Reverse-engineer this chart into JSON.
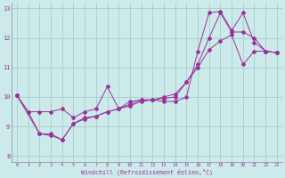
{
  "xlabel": "Windchill (Refroidissement éolien,°C)",
  "bg_color": "#cceaea",
  "grid_color": "#aacccc",
  "line_color": "#993399",
  "xlim": [
    -0.5,
    23.5
  ],
  "ylim": [
    7.8,
    13.2
  ],
  "yticks": [
    8,
    9,
    10,
    11,
    12,
    13
  ],
  "xticks": [
    0,
    1,
    2,
    3,
    4,
    5,
    6,
    7,
    8,
    9,
    10,
    11,
    12,
    13,
    14,
    15,
    16,
    17,
    18,
    19,
    20,
    21,
    22,
    23
  ],
  "series1": [
    [
      0,
      10.05
    ],
    [
      1,
      9.5
    ],
    [
      2,
      9.5
    ],
    [
      3,
      9.5
    ],
    [
      4,
      9.6
    ],
    [
      5,
      9.3
    ],
    [
      6,
      9.5
    ],
    [
      7,
      9.6
    ],
    [
      8,
      10.35
    ],
    [
      9,
      9.6
    ],
    [
      10,
      9.85
    ],
    [
      11,
      9.9
    ],
    [
      12,
      9.9
    ],
    [
      13,
      9.85
    ],
    [
      14,
      9.85
    ],
    [
      15,
      10.0
    ],
    [
      16,
      11.55
    ],
    [
      17,
      12.85
    ],
    [
      18,
      12.9
    ],
    [
      19,
      12.25
    ],
    [
      20,
      12.85
    ],
    [
      21,
      11.85
    ],
    [
      22,
      11.55
    ],
    [
      23,
      11.5
    ]
  ],
  "series2": [
    [
      0,
      10.05
    ],
    [
      1,
      9.5
    ],
    [
      2,
      8.75
    ],
    [
      3,
      8.7
    ],
    [
      4,
      8.55
    ],
    [
      5,
      9.1
    ],
    [
      6,
      9.25
    ],
    [
      7,
      9.35
    ],
    [
      8,
      9.5
    ],
    [
      9,
      9.6
    ],
    [
      10,
      9.7
    ],
    [
      11,
      9.85
    ],
    [
      12,
      9.9
    ],
    [
      13,
      9.95
    ],
    [
      14,
      10.0
    ],
    [
      15,
      10.5
    ],
    [
      16,
      11.0
    ],
    [
      17,
      11.6
    ],
    [
      18,
      11.9
    ],
    [
      19,
      12.1
    ],
    [
      20,
      11.1
    ],
    [
      21,
      11.55
    ],
    [
      22,
      11.55
    ],
    [
      23,
      11.5
    ]
  ],
  "series3": [
    [
      0,
      10.05
    ],
    [
      2,
      8.75
    ],
    [
      3,
      8.75
    ],
    [
      4,
      8.55
    ],
    [
      5,
      9.1
    ],
    [
      6,
      9.3
    ],
    [
      7,
      9.35
    ],
    [
      8,
      9.5
    ],
    [
      9,
      9.6
    ],
    [
      10,
      9.75
    ],
    [
      11,
      9.9
    ],
    [
      12,
      9.9
    ],
    [
      13,
      10.0
    ],
    [
      14,
      10.1
    ],
    [
      15,
      10.5
    ],
    [
      16,
      11.1
    ],
    [
      17,
      12.0
    ],
    [
      18,
      12.85
    ],
    [
      19,
      12.2
    ],
    [
      20,
      12.2
    ],
    [
      21,
      12.0
    ],
    [
      22,
      11.55
    ],
    [
      23,
      11.5
    ]
  ]
}
